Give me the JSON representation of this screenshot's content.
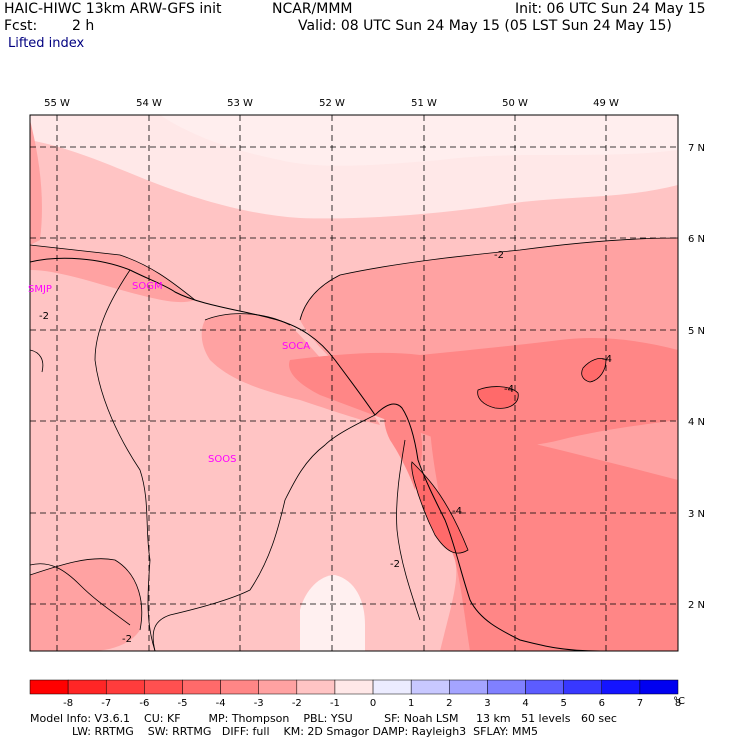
{
  "header": {
    "model": "HAIC-HIWC 13km ARW-GFS init",
    "org": "NCAR/MMM",
    "init": "Init: 06 UTC Sun 24 May 15",
    "fcst_label": "Fcst:",
    "fcst_value": "2 h",
    "valid": "Valid: 08 UTC Sun 24 May 15 (05 LST Sun 24 May 15)",
    "field": "Lifted index"
  },
  "map": {
    "lon_labels": [
      "55 W",
      "54 W",
      "53 W",
      "52 W",
      "51 W",
      "50 W",
      "49 W"
    ],
    "lat_labels": [
      "7 N",
      "6 N",
      "5 N",
      "4 N",
      "3 N",
      "2 N"
    ],
    "stations": [
      "SMJP",
      "SOGM",
      "SOCA",
      "SOOS"
    ],
    "contour_labels": [
      "-2",
      "-2",
      "-2",
      "-4",
      "-4",
      "-2",
      "-4"
    ]
  },
  "colorbar": {
    "ticks": [
      "-8",
      "-7",
      "-6",
      "-5",
      "-4",
      "-3",
      "-2",
      "-1",
      "0",
      "1",
      "2",
      "3",
      "4",
      "5",
      "6",
      "7",
      "8"
    ],
    "unit": "°C",
    "colors": [
      "#ff0000",
      "#ff2626",
      "#ff3c3c",
      "#ff5050",
      "#ff6a6a",
      "#ff8686",
      "#ffa2a2",
      "#ffc4c4",
      "#ffe8e8",
      "#ececff",
      "#c8c8ff",
      "#a4a4ff",
      "#8080ff",
      "#5c5cff",
      "#3838ff",
      "#1414ff",
      "#0000f0"
    ]
  },
  "footer": {
    "line1": "Model Info: V3.6.1    CU: KF        MP: Thompson    PBL: YSU         SF: Noah LSM     13 km   51 levels   60 sec",
    "line2": "            LW: RRTMG    SW: RRTMG   DIFF: full    KM: 2D Smagor DAMP: Rayleigh3  SFLAY: MM5"
  }
}
